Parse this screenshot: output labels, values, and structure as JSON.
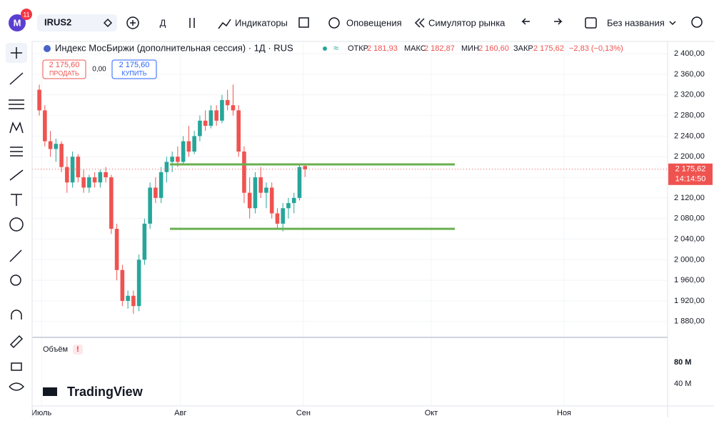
{
  "toolbar": {
    "avatar": "M",
    "badge": "11",
    "symbol": "IRUS2",
    "interval": "Д",
    "indicators": "Индикаторы",
    "alerts": "Оповещения",
    "simulator": "Симулятор рынка",
    "layout_name": "Без названия"
  },
  "legend": {
    "title": "Индекс МосБиржи (дополнительная сессия) · 1Д · RUS",
    "open_label": "ОТКР",
    "open": "2 181,93",
    "high_label": "МАКС",
    "high": "2 182,87",
    "low_label": "МИН",
    "low": "2 160,60",
    "close_label": "ЗАКР",
    "close": "2 175,62",
    "change": "−2,83 (−0,13%)",
    "sell_price": "2 175,60",
    "sell": "ПРОДАТЬ",
    "spread": "0,00",
    "buy_price": "2 175,60",
    "buy": "КУПИТЬ"
  },
  "chart_data": {
    "type": "candlestick",
    "up_color": "#26a69a",
    "down_color": "#ef5350",
    "level_color": "#6aaf50",
    "open": [
      2330,
      2290,
      2230,
      2215,
      2225,
      2180,
      2150,
      2200,
      2160,
      2140,
      2160,
      2150,
      2170,
      2160,
      2060,
      1980,
      1920,
      1930,
      1910,
      2000,
      2070,
      2140,
      2120,
      2170,
      2190,
      2200,
      2190,
      2230,
      2210,
      2240,
      2270,
      2260,
      2290,
      2270,
      2310,
      2300,
      2290,
      2210,
      2130,
      2100,
      2160,
      2130,
      2140,
      2090,
      2070,
      2100,
      2110,
      2120,
      2181.93
    ],
    "high": [
      2340,
      2300,
      2250,
      2235,
      2230,
      2200,
      2210,
      2205,
      2175,
      2165,
      2170,
      2175,
      2180,
      2165,
      2070,
      1990,
      1940,
      1940,
      2010,
      2080,
      2150,
      2160,
      2180,
      2200,
      2210,
      2220,
      2240,
      2260,
      2250,
      2280,
      2290,
      2300,
      2300,
      2320,
      2330,
      2340,
      2300,
      2220,
      2160,
      2170,
      2180,
      2150,
      2150,
      2100,
      2110,
      2120,
      2130,
      2185,
      2182.87
    ],
    "low": [
      2280,
      2220,
      2200,
      2190,
      2170,
      2130,
      2140,
      2150,
      2130,
      2130,
      2140,
      2140,
      2150,
      2050,
      1960,
      1910,
      1905,
      1895,
      1900,
      1990,
      2060,
      2110,
      2110,
      2150,
      2170,
      2180,
      2185,
      2200,
      2205,
      2230,
      2250,
      2255,
      2260,
      2265,
      2290,
      2280,
      2200,
      2110,
      2080,
      2090,
      2120,
      2100,
      2080,
      2060,
      2055,
      2080,
      2090,
      2115,
      2160.6
    ],
    "close": [
      2290,
      2230,
      2215,
      2225,
      2180,
      2150,
      2200,
      2160,
      2140,
      2160,
      2150,
      2170,
      2160,
      2060,
      1980,
      1920,
      1930,
      1910,
      2000,
      2070,
      2140,
      2120,
      2170,
      2190,
      2200,
      2190,
      2230,
      2210,
      2240,
      2270,
      2260,
      2290,
      2270,
      2310,
      2300,
      2290,
      2210,
      2130,
      2100,
      2160,
      2130,
      2140,
      2090,
      2070,
      2100,
      2110,
      2120,
      2180,
      2175.62
    ],
    "levels": [
      2185,
      2060
    ],
    "ylim": [
      1852,
      2421
    ],
    "yticks": [
      {
        "value": 2400,
        "label": "2 400,00"
      },
      {
        "value": 2360,
        "label": "2 360,00"
      },
      {
        "value": 2320,
        "label": "2 320,00"
      },
      {
        "value": 2280,
        "label": "2 280,00"
      },
      {
        "value": 2240,
        "label": "2 240,00"
      },
      {
        "value": 2200,
        "label": "2 200,00"
      },
      {
        "value": 2160,
        "label": "2 160,00"
      },
      {
        "value": 2120,
        "label": "2 120,00"
      },
      {
        "value": 2080,
        "label": "2 080,00"
      },
      {
        "value": 2040,
        "label": "2 040,00"
      },
      {
        "value": 2000,
        "label": "2 000,00"
      },
      {
        "value": 1960,
        "label": "1 960,00"
      },
      {
        "value": 1920,
        "label": "1 920,00"
      },
      {
        "value": 1880,
        "label": "1 880,00"
      }
    ],
    "xlim": [
      -1.3,
      113.5
    ],
    "xticks": [
      {
        "value": 0.4,
        "label": "Июль"
      },
      {
        "value": 25.5,
        "label": "Авг"
      },
      {
        "value": 47.7,
        "label": "Сен"
      },
      {
        "value": 70.8,
        "label": "Окт"
      },
      {
        "value": 94.8,
        "label": "Ноя"
      }
    ],
    "last_price": 2175.62,
    "last_price_label": "2 175,62",
    "countdown": "14:14:50",
    "grid": true
  },
  "volume_pane": {
    "title": "Объём",
    "ticks": [
      "80 M",
      "40 M"
    ]
  },
  "branding": "TradingView"
}
